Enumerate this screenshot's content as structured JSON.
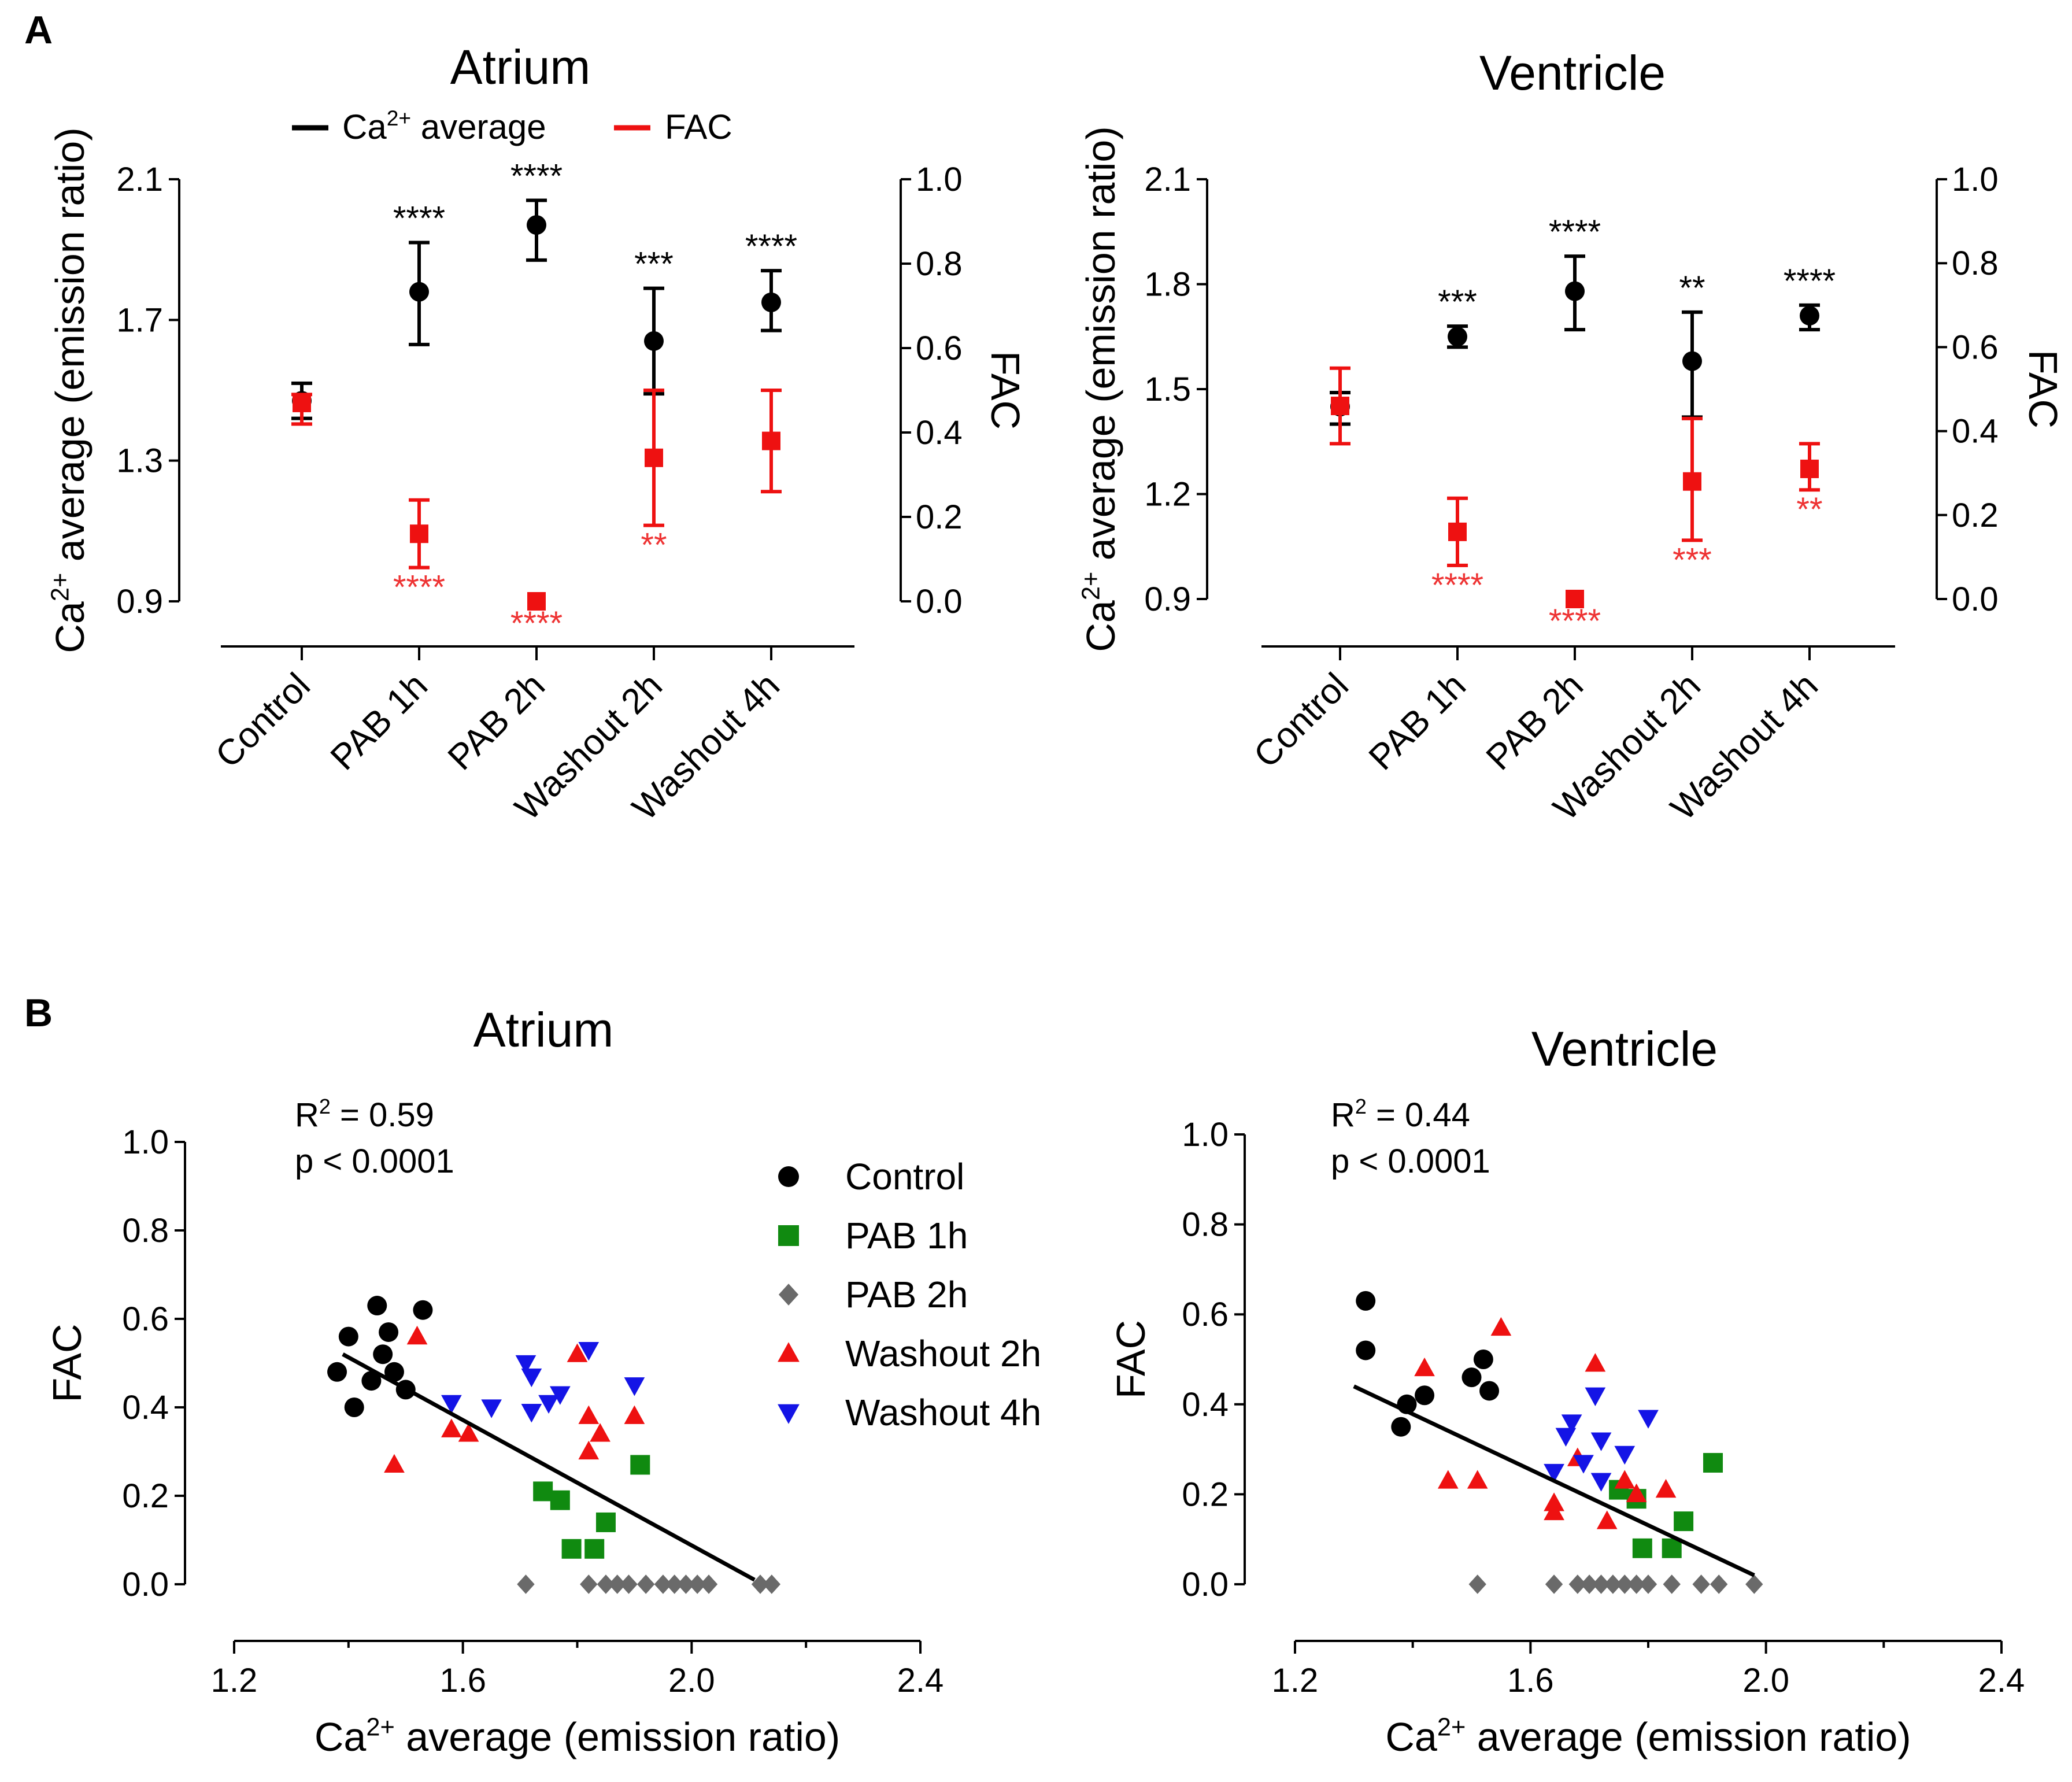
{
  "panel_labels": {
    "a": "A",
    "b": "B"
  },
  "colors": {
    "black": "#000000",
    "red": "#ee1111",
    "green": "#108a10",
    "gray": "#6a6a6a",
    "blue": "#1414e6",
    "sig_red": "#ee3333",
    "axis": "#222222"
  },
  "chart_data": [
    {
      "id": "A-atrium",
      "type": "scatter",
      "title": "Atrium",
      "categories": [
        "Control",
        "PAB 1h",
        "PAB 2h",
        "Washout 2h",
        "Washout 4h"
      ],
      "ylabel": "average (emission ratio)",
      "ylabel_prefix": "Ca",
      "ylabel_sup": "2+",
      "y2label": "FAC",
      "ylim": [
        0.9,
        2.1
      ],
      "yticks": [
        "0.9",
        "1.3",
        "1.7",
        "2.1"
      ],
      "y2lim": [
        0.0,
        1.0
      ],
      "y2ticks": [
        "0.0",
        "0.2",
        "0.4",
        "0.6",
        "0.8",
        "1.0"
      ],
      "legend": {
        "ca_prefix": "Ca",
        "ca_sup": "2+",
        "ca_suffix": " average",
        "fac": "FAC"
      },
      "series": [
        {
          "name": "Ca2+ average",
          "axis": "left",
          "color": "black",
          "marker": "circle",
          "values": [
            1.47,
            1.78,
            1.97,
            1.64,
            1.75
          ],
          "err_low": [
            1.42,
            1.63,
            1.87,
            1.49,
            1.67
          ],
          "err_high": [
            1.52,
            1.92,
            2.04,
            1.79,
            1.84
          ],
          "significance": [
            "",
            "****",
            "****",
            "***",
            "****"
          ]
        },
        {
          "name": "FAC",
          "axis": "right",
          "color": "red",
          "marker": "square",
          "values": [
            0.47,
            0.16,
            0.0,
            0.34,
            0.38
          ],
          "err_low": [
            0.42,
            0.08,
            0.0,
            0.18,
            0.26
          ],
          "err_high": [
            0.49,
            0.24,
            0.0,
            0.5,
            0.5
          ],
          "significance": [
            "",
            "****",
            "****",
            "**",
            ""
          ]
        }
      ]
    },
    {
      "id": "A-ventricle",
      "type": "scatter",
      "title": "Ventricle",
      "categories": [
        "Control",
        "PAB 1h",
        "PAB 2h",
        "Washout 2h",
        "Washout 4h"
      ],
      "ylabel": "average (emission ratio)",
      "ylabel_prefix": "Ca",
      "ylabel_sup": "2+",
      "y2label": "FAC",
      "ylim": [
        0.9,
        2.1
      ],
      "yticks": [
        "0.9",
        "1.2",
        "1.5",
        "1.8",
        "2.1"
      ],
      "y2lim": [
        0.0,
        1.0
      ],
      "y2ticks": [
        "0.0",
        "0.2",
        "0.4",
        "0.6",
        "0.8",
        "1.0"
      ],
      "series": [
        {
          "name": "Ca2+ average",
          "axis": "left",
          "color": "black",
          "marker": "circle",
          "values": [
            1.45,
            1.65,
            1.78,
            1.58,
            1.71
          ],
          "err_low": [
            1.4,
            1.62,
            1.67,
            1.42,
            1.67
          ],
          "err_high": [
            1.49,
            1.68,
            1.88,
            1.72,
            1.74
          ],
          "significance": [
            "",
            "***",
            "****",
            "**",
            "****"
          ]
        },
        {
          "name": "FAC",
          "axis": "right",
          "color": "red",
          "marker": "square",
          "values": [
            0.46,
            0.16,
            0.0,
            0.28,
            0.31
          ],
          "err_low": [
            0.37,
            0.08,
            0.0,
            0.14,
            0.26
          ],
          "err_high": [
            0.55,
            0.24,
            0.0,
            0.43,
            0.37
          ],
          "significance": [
            "",
            "****",
            "****",
            "***",
            "**"
          ]
        }
      ]
    },
    {
      "id": "B-atrium",
      "type": "scatter",
      "title": "Atrium",
      "xlabel": " average (emission ratio)",
      "xlabel_prefix": "Ca",
      "xlabel_sup": "2+",
      "ylabel": "FAC",
      "xlim": [
        1.2,
        2.4
      ],
      "ylim": [
        0.0,
        1.0
      ],
      "xticks": [
        "1.2",
        "1.6",
        "2.0",
        "2.4"
      ],
      "yticks": [
        "0.0",
        "0.2",
        "0.4",
        "0.6",
        "0.8",
        "1.0"
      ],
      "stats": {
        "r2_prefix": "R",
        "r2_sup": "2",
        "r2_value": " = 0.59",
        "p": "p < 0.0001"
      },
      "regression": {
        "x1": 1.39,
        "y1": 0.52,
        "x2": 2.11,
        "y2": 0.01
      },
      "series": [
        {
          "name": "Control",
          "marker": "circle",
          "color": "black",
          "points": [
            [
              1.38,
              0.48
            ],
            [
              1.4,
              0.56
            ],
            [
              1.41,
              0.4
            ],
            [
              1.44,
              0.46
            ],
            [
              1.45,
              0.63
            ],
            [
              1.46,
              0.52
            ],
            [
              1.47,
              0.57
            ],
            [
              1.48,
              0.48
            ],
            [
              1.5,
              0.44
            ],
            [
              1.53,
              0.62
            ]
          ]
        },
        {
          "name": "PAB 1h",
          "marker": "square",
          "color": "green",
          "points": [
            [
              1.74,
              0.21
            ],
            [
              1.77,
              0.19
            ],
            [
              1.79,
              0.08
            ],
            [
              1.83,
              0.08
            ],
            [
              1.85,
              0.14
            ],
            [
              1.91,
              0.27
            ]
          ]
        },
        {
          "name": "PAB 2h",
          "marker": "diamond",
          "color": "gray",
          "points": [
            [
              1.71,
              0.0
            ],
            [
              1.82,
              0.0
            ],
            [
              1.85,
              0.0
            ],
            [
              1.87,
              0.0
            ],
            [
              1.89,
              0.0
            ],
            [
              1.92,
              0.0
            ],
            [
              1.95,
              0.0
            ],
            [
              1.97,
              0.0
            ],
            [
              1.99,
              0.0
            ],
            [
              2.01,
              0.0
            ],
            [
              2.03,
              0.0
            ],
            [
              2.12,
              0.0
            ],
            [
              2.14,
              0.0
            ]
          ]
        },
        {
          "name": "Washout 2h",
          "marker": "triangle-up",
          "color": "red",
          "points": [
            [
              1.48,
              0.27
            ],
            [
              1.52,
              0.56
            ],
            [
              1.58,
              0.35
            ],
            [
              1.61,
              0.34
            ],
            [
              1.8,
              0.52
            ],
            [
              1.82,
              0.38
            ],
            [
              1.82,
              0.3
            ],
            [
              1.84,
              0.34
            ],
            [
              1.9,
              0.38
            ]
          ]
        },
        {
          "name": "Washout 4h",
          "marker": "triangle-down",
          "color": "blue",
          "points": [
            [
              1.58,
              0.41
            ],
            [
              1.65,
              0.4
            ],
            [
              1.71,
              0.5
            ],
            [
              1.72,
              0.47
            ],
            [
              1.72,
              0.39
            ],
            [
              1.75,
              0.41
            ],
            [
              1.77,
              0.43
            ],
            [
              1.82,
              0.53
            ],
            [
              1.9,
              0.45
            ]
          ]
        }
      ]
    },
    {
      "id": "B-ventricle",
      "type": "scatter",
      "title": "Ventricle",
      "xlabel": " average (emission ratio)",
      "xlabel_prefix": "Ca",
      "xlabel_sup": "2+",
      "ylabel": "FAC",
      "xlim": [
        1.2,
        2.4
      ],
      "ylim": [
        0.0,
        1.0
      ],
      "xticks": [
        "1.2",
        "1.6",
        "2.0",
        "2.4"
      ],
      "yticks": [
        "0.0",
        "0.2",
        "0.4",
        "0.6",
        "0.8",
        "1.0"
      ],
      "stats": {
        "r2_prefix": "R",
        "r2_sup": "2",
        "r2_value": " = 0.44",
        "p": "p < 0.0001"
      },
      "regression": {
        "x1": 1.3,
        "y1": 0.44,
        "x2": 1.98,
        "y2": 0.02
      },
      "series": [
        {
          "name": "Control",
          "marker": "circle",
          "color": "black",
          "points": [
            [
              1.32,
              0.63
            ],
            [
              1.32,
              0.52
            ],
            [
              1.38,
              0.35
            ],
            [
              1.39,
              0.4
            ],
            [
              1.42,
              0.42
            ],
            [
              1.5,
              0.46
            ],
            [
              1.52,
              0.5
            ],
            [
              1.53,
              0.43
            ]
          ]
        },
        {
          "name": "PAB 1h",
          "marker": "square",
          "color": "green",
          "points": [
            [
              1.75,
              0.21
            ],
            [
              1.78,
              0.19
            ],
            [
              1.79,
              0.08
            ],
            [
              1.84,
              0.08
            ],
            [
              1.86,
              0.14
            ],
            [
              1.91,
              0.27
            ]
          ]
        },
        {
          "name": "PAB 2h",
          "marker": "diamond",
          "color": "gray",
          "points": [
            [
              1.51,
              0.0
            ],
            [
              1.64,
              0.0
            ],
            [
              1.68,
              0.0
            ],
            [
              1.7,
              0.0
            ],
            [
              1.72,
              0.0
            ],
            [
              1.74,
              0.0
            ],
            [
              1.76,
              0.0
            ],
            [
              1.78,
              0.0
            ],
            [
              1.8,
              0.0
            ],
            [
              1.84,
              0.0
            ],
            [
              1.89,
              0.0
            ],
            [
              1.92,
              0.0
            ],
            [
              1.98,
              0.0
            ]
          ]
        },
        {
          "name": "Washout 2h",
          "marker": "triangle-up",
          "color": "red",
          "points": [
            [
              1.42,
              0.48
            ],
            [
              1.46,
              0.23
            ],
            [
              1.51,
              0.23
            ],
            [
              1.55,
              0.57
            ],
            [
              1.64,
              0.16
            ],
            [
              1.64,
              0.18
            ],
            [
              1.68,
              0.28
            ],
            [
              1.71,
              0.49
            ],
            [
              1.73,
              0.14
            ],
            [
              1.76,
              0.23
            ],
            [
              1.78,
              0.2
            ],
            [
              1.83,
              0.21
            ]
          ]
        },
        {
          "name": "Washout 4h",
          "marker": "triangle-down",
          "color": "blue",
          "points": [
            [
              1.64,
              0.25
            ],
            [
              1.66,
              0.33
            ],
            [
              1.67,
              0.36
            ],
            [
              1.69,
              0.27
            ],
            [
              1.71,
              0.42
            ],
            [
              1.72,
              0.32
            ],
            [
              1.72,
              0.23
            ],
            [
              1.76,
              0.29
            ],
            [
              1.8,
              0.37
            ]
          ]
        }
      ]
    }
  ]
}
